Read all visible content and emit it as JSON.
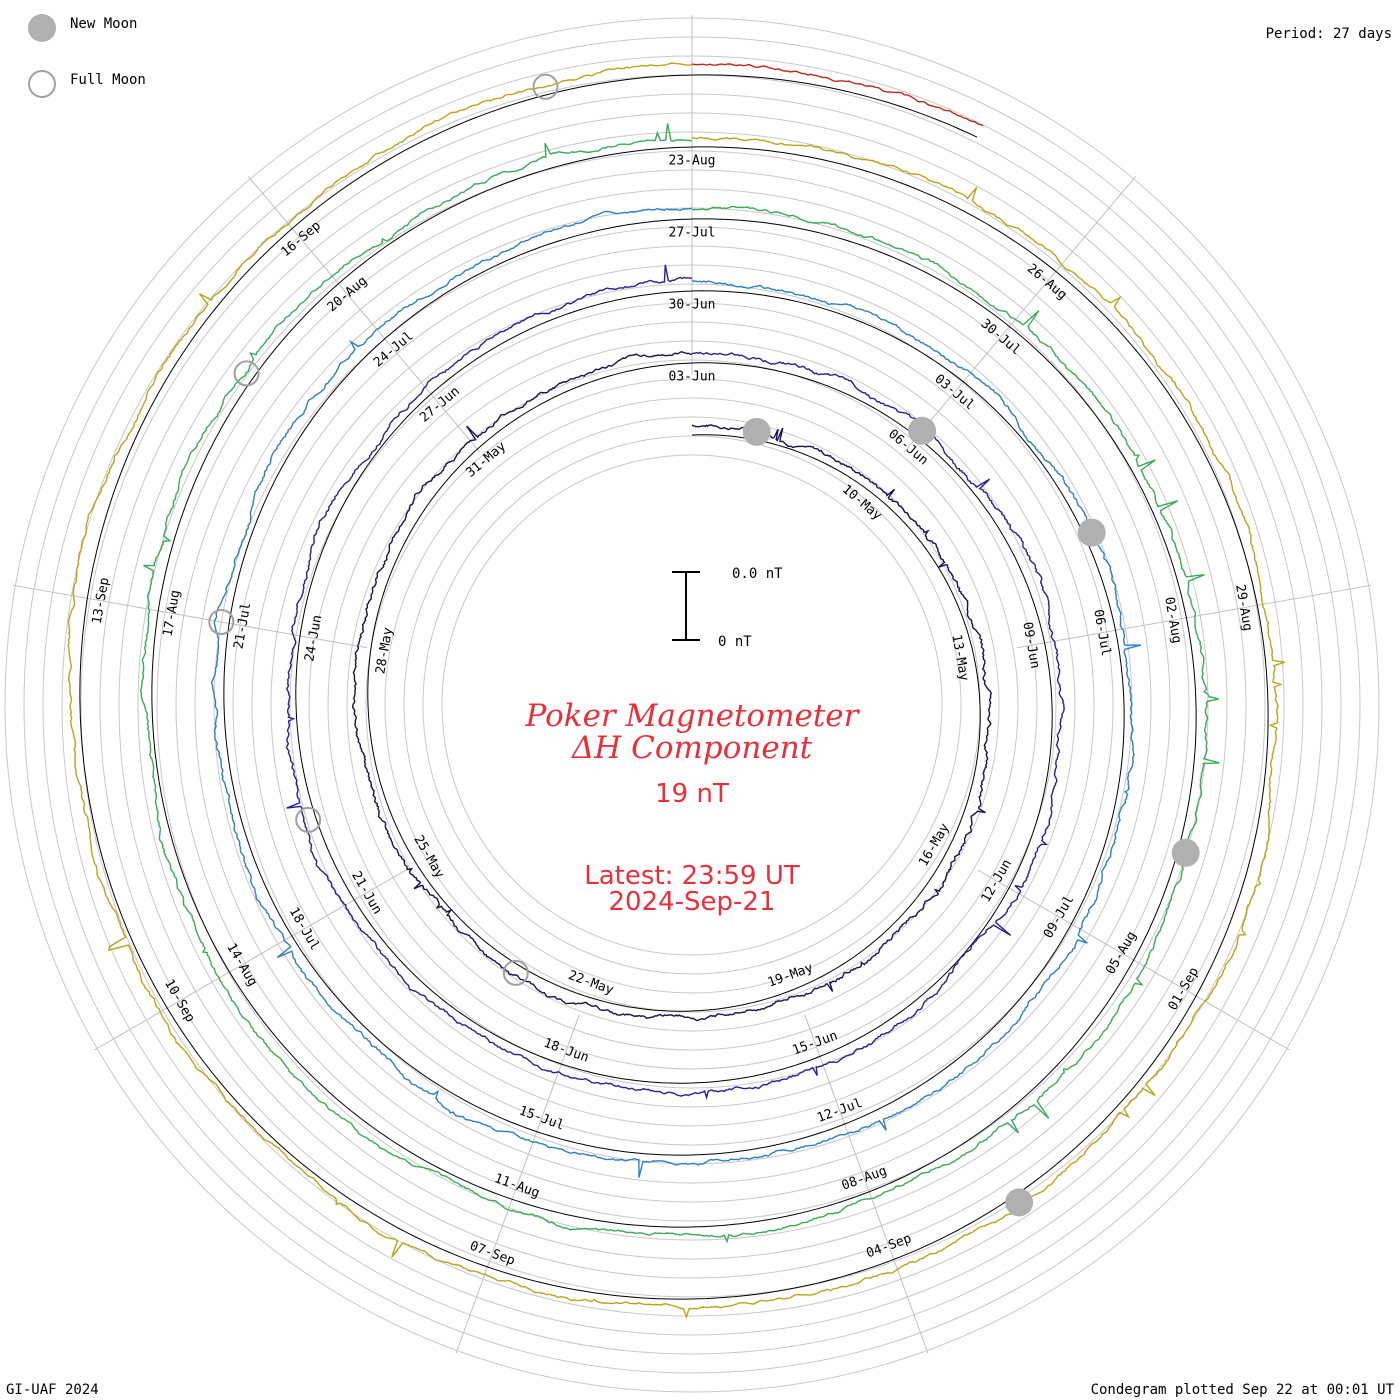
{
  "legend": {
    "new_moon_label": "New Moon",
    "full_moon_label": "Full Moon",
    "new_moon_color": "#b0b0b0",
    "full_moon_color": "#a0a0a0"
  },
  "header": {
    "period_label": "Period: 27 days"
  },
  "center": {
    "title_line1": "Poker Magnetometer",
    "title_line2": "ΔH Component",
    "scale_value": "19 nT",
    "latest_line": "Latest: 23:59 UT",
    "date_line": "2024-Sep-21",
    "scale_bar_top": "0.0 nT",
    "scale_bar_bottom": "0 nT",
    "text_color": "#e8303a"
  },
  "footer": {
    "credit": "GI-UAF 2024",
    "plotted": "Condegram plotted Sep 22 at 00:01 UT"
  },
  "chart_data": {
    "type": "line",
    "title": "Poker Magnetometer ΔH Component",
    "subtitle": "19 nT",
    "period_days": 27,
    "x_units": "days",
    "series": [
      {
        "color": "#1a1150",
        "start": "2024-05-07",
        "end": "2024-06-03",
        "labels": [
          "10-May",
          "13-May",
          "16-May",
          "19-May",
          "22-May",
          "25-May",
          "28-May",
          "31-May",
          "03-Jun"
        ]
      },
      {
        "color": "#2a1f9a",
        "start": "2024-06-03",
        "end": "2024-06-30",
        "labels": [
          "06-Jun",
          "09-Jun",
          "12-Jun",
          "15-Jun",
          "18-Jun",
          "21-Jun",
          "24-Jun",
          "27-Jun",
          "30-Jun"
        ]
      },
      {
        "color": "#2f7fbf",
        "start": "2024-06-30",
        "end": "2024-07-27",
        "labels": [
          "03-Jul",
          "06-Jul",
          "09-Jul",
          "12-Jul",
          "15-Jul",
          "18-Jul",
          "21-Jul",
          "24-Jul",
          "27-Jul"
        ]
      },
      {
        "color": "#3caa5a",
        "start": "2024-07-27",
        "end": "2024-08-23",
        "labels": [
          "30-Jul",
          "02-Aug",
          "05-Aug",
          "08-Aug",
          "11-Aug",
          "14-Aug",
          "17-Aug",
          "20-Aug",
          "23-Aug"
        ]
      },
      {
        "color": "#b8a51a",
        "start": "2024-08-23",
        "end": "2024-09-19",
        "labels": [
          "26-Aug",
          "29-Aug",
          "01-Sep",
          "04-Sep",
          "07-Sep",
          "10-Sep",
          "13-Sep",
          "16-Sep"
        ]
      },
      {
        "color": "#c0281e",
        "start": "2024-09-19",
        "end": "2024-09-21",
        "labels": []
      }
    ],
    "new_moon_dates": [
      "2024-05-08",
      "2024-06-06",
      "2024-07-05",
      "2024-08-04",
      "2024-09-03"
    ],
    "full_moon_dates": [
      "2024-05-23",
      "2024-06-22",
      "2024-07-21",
      "2024-08-19",
      "2024-09-18"
    ]
  }
}
